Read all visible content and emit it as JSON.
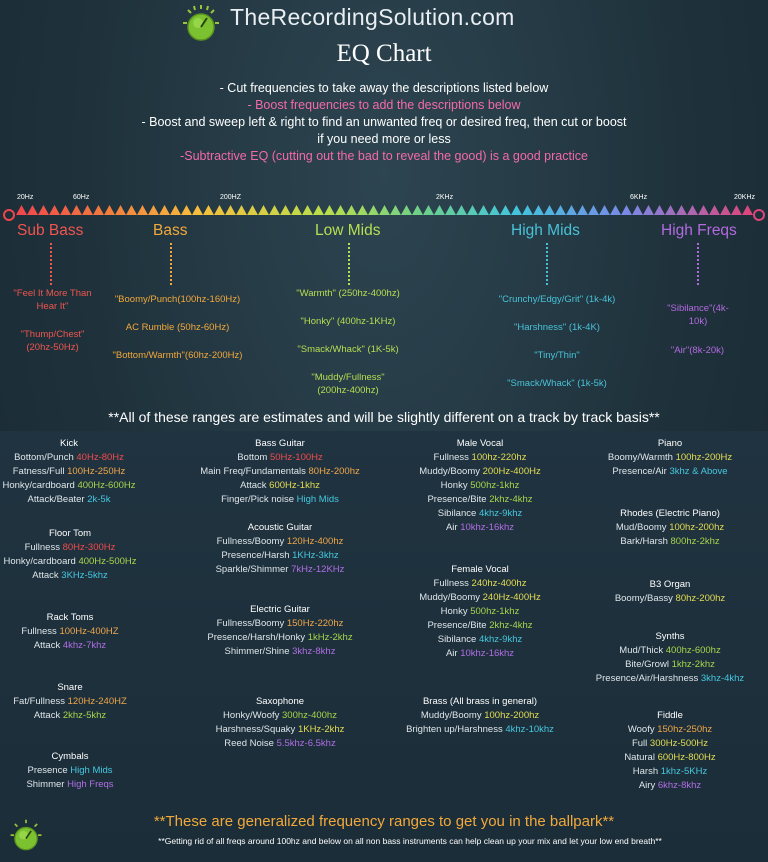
{
  "header": {
    "site_name": "TheRecordingSolution.com",
    "title": "EQ Chart"
  },
  "intro": [
    {
      "text": "- Cut frequencies to take away the descriptions listed below",
      "color": "#ffffff"
    },
    {
      "text": "- Boost frequencies to add the descriptions below",
      "color": "#f36aa8"
    },
    {
      "text": "- Boost and sweep left & right to find an unwanted freq or desired freq, then cut or boost",
      "color": "#ffffff"
    },
    {
      "text": "if you need more or less",
      "color": "#ffffff"
    },
    {
      "text": "-Subtractive EQ (cutting out the bad to reveal the good) is a good practice",
      "color": "#f36aa8"
    }
  ],
  "scale": {
    "labels": [
      "20Hz",
      "60Hz",
      "200HZ",
      "2KHz",
      "6KHz",
      "20KHz"
    ]
  },
  "bands": [
    {
      "name": "Sub Bass",
      "descs": [
        "\"Feel It More Than Hear It\"",
        "\"Thump/Chest\" (20hz-50Hz)"
      ]
    },
    {
      "name": "Bass",
      "descs": [
        "\"Boomy/Punch(100hz-160Hz)",
        "AC Rumble (50hz-60Hz)",
        "\"Bottom/Warmth\"(60hz-200Hz)"
      ]
    },
    {
      "name": "Low Mids",
      "descs": [
        "\"Warmth\" (250hz-400hz)",
        "\"Honky\" (400hz-1KHz)",
        "\"Smack/Whack\" (1K-5k)",
        "\"Muddy/Fullness\" (200hz-400hz)"
      ]
    },
    {
      "name": "High Mids",
      "descs": [
        "\"Crunchy/Edgy/Grit\" (1k-4k)",
        "\"Harshness\" (1k-4K)",
        "\"Tiny/Thin\"",
        "\"Smack/Whack\" (1k-5k)"
      ]
    },
    {
      "name": "High Freqs",
      "descs": [
        "\"Sibilance\"(4k-10k)",
        "\"Air\"(8k-20k)"
      ]
    }
  ],
  "disclaimer": "**All of these ranges are estimates and will be slightly different on a track by track basis**",
  "instruments": {
    "kick": {
      "name": "Kick",
      "rows": [
        [
          "Bottom/Punch ",
          "40Hz-80Hz"
        ],
        [
          "Fatness/Full ",
          "100Hz-250Hz"
        ],
        [
          "Honky/cardboard ",
          "400Hz-600Hz"
        ],
        [
          "Attack/Beater ",
          "2k-5k"
        ]
      ]
    },
    "floor_tom": {
      "name": "Floor Tom",
      "rows": [
        [
          "Fullness ",
          "80Hz-300Hz"
        ],
        [
          "Honky/cardboard ",
          "400Hz-500Hz"
        ],
        [
          "Attack ",
          "3KHz-5khz"
        ]
      ]
    },
    "rack_toms": {
      "name": "Rack Toms",
      "rows": [
        [
          "Fullness ",
          "100Hz-400HZ"
        ],
        [
          "Attack ",
          "4khz-7khz"
        ]
      ]
    },
    "snare": {
      "name": "Snare",
      "rows": [
        [
          "Fat/Fullness ",
          "120Hz-240HZ"
        ],
        [
          "Attack ",
          "2khz-5khz"
        ]
      ]
    },
    "cymbals": {
      "name": "Cymbals",
      "rows": [
        [
          "Presence ",
          "High Mids"
        ],
        [
          "Shimmer ",
          "High Freqs"
        ]
      ]
    },
    "bass_guitar": {
      "name": "Bass Guitar",
      "rows": [
        [
          "Bottom ",
          "50Hz-100Hz"
        ],
        [
          "Main Freq/Fundamentals ",
          "80Hz-200hz"
        ],
        [
          "Attack ",
          "600Hz-1khz"
        ],
        [
          "Finger/Pick noise ",
          "High Mids"
        ]
      ]
    },
    "acoustic_guitar": {
      "name": "Acoustic Guitar",
      "rows": [
        [
          "Fullness/Boomy ",
          "120Hz-400hz"
        ],
        [
          "Presence/Harsh ",
          "1KHz-3khz"
        ],
        [
          "Sparkle/Shimmer ",
          "7kHz-12KHz"
        ]
      ]
    },
    "electric_guitar": {
      "name": "Electric Guitar",
      "rows": [
        [
          "Fullness/Boomy ",
          "150Hz-220hz"
        ],
        [
          "Presence/Harsh/Honky ",
          "1kHz-2khz"
        ],
        [
          "Shimmer/Shine ",
          "3khz-8khz"
        ]
      ]
    },
    "saxophone": {
      "name": "Saxophone",
      "rows": [
        [
          "Honky/Woofy ",
          "300hz-400hz"
        ],
        [
          "Harshness/Squaky ",
          "1KHz-2khz"
        ],
        [
          "Reed Noise ",
          "5.5khz-6.5khz"
        ]
      ]
    },
    "male_vocal": {
      "name": "Male Vocal",
      "rows": [
        [
          "Fullness ",
          "100hz-220hz"
        ],
        [
          "Muddy/Boomy ",
          "200Hz-400Hz"
        ],
        [
          "Honky ",
          "500hz-1khz"
        ],
        [
          "Presence/Bite ",
          "2khz-4khz"
        ],
        [
          "Sibilance ",
          "4khz-9khz"
        ],
        [
          "Air ",
          "10khz-16khz"
        ]
      ]
    },
    "female_vocal": {
      "name": "Female Vocal",
      "rows": [
        [
          "Fullness ",
          "240hz-400hz"
        ],
        [
          "Muddy/Boomy ",
          "240Hz-400Hz"
        ],
        [
          "Honky ",
          "500hz-1khz"
        ],
        [
          "Presence/Bite ",
          "2khz-4khz"
        ],
        [
          "Sibilance ",
          "4khz-9khz"
        ],
        [
          "Air ",
          "10khz-16khz"
        ]
      ]
    },
    "brass": {
      "name": "Brass (All brass in general)",
      "rows": [
        [
          "Muddy/Boomy ",
          "100hz-200hz"
        ],
        [
          "Brighten up/Harshness ",
          "4khz-10khz"
        ]
      ]
    },
    "piano": {
      "name": "Piano",
      "rows": [
        [
          "Boomy/Warmth ",
          "100hz-200Hz"
        ],
        [
          "Presence/Air ",
          "3khz & Above"
        ]
      ]
    },
    "rhodes": {
      "name": "Rhodes (Electric Piano)",
      "rows": [
        [
          "Mud/Boomy ",
          "100hz-200hz"
        ],
        [
          "Bark/Harsh ",
          "800hz-2khz"
        ]
      ]
    },
    "b3_organ": {
      "name": "B3 Organ",
      "rows": [
        [
          "Boomy/Bassy ",
          "80hz-200hz"
        ]
      ]
    },
    "synths": {
      "name": "Synths",
      "rows": [
        [
          "Mud/Thick ",
          "400hz-600hz"
        ],
        [
          "Bite/Growl ",
          "1khz-2khz"
        ],
        [
          "Presence/Air/Harshness ",
          "3khz-4khz"
        ]
      ]
    },
    "fiddle": {
      "name": "Fiddle",
      "rows": [
        [
          "Woofy ",
          "150hz-250hz"
        ],
        [
          "Full ",
          "300Hz-500Hz"
        ],
        [
          "Natural ",
          "600Hz-800Hz"
        ],
        [
          "Harsh ",
          "1khz-5KHz"
        ],
        [
          "Airy ",
          "6khz-8khz"
        ]
      ]
    }
  },
  "footer": {
    "main": "**These are generalized frequency ranges to get you in the ballpark**",
    "note": "**Getting rid of all freqs around 100hz and below on all non bass instruments can help clean up your mix and let your low end breath**"
  }
}
